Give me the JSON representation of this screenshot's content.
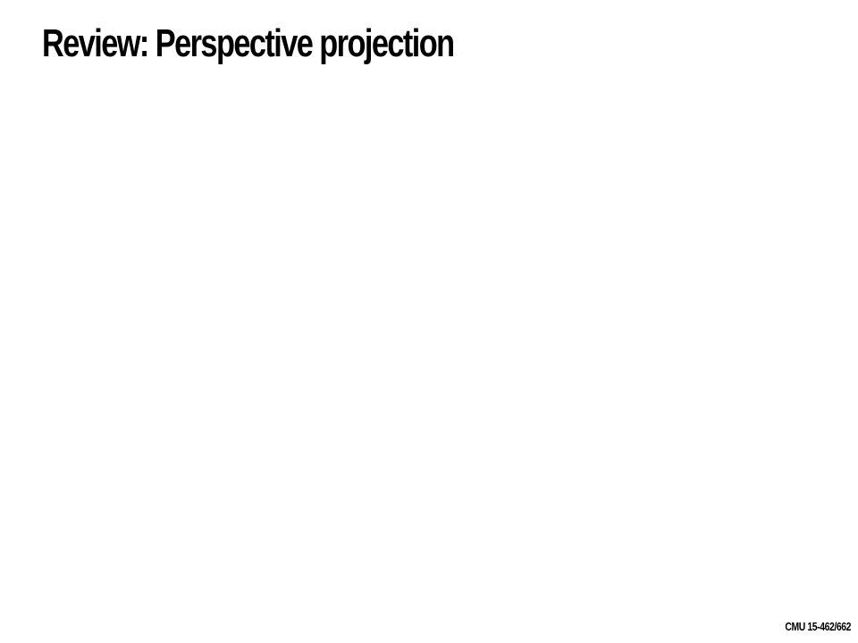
{
  "slide": {
    "title": "Review: Perspective projection",
    "footer": "CMU 15-462/662"
  }
}
